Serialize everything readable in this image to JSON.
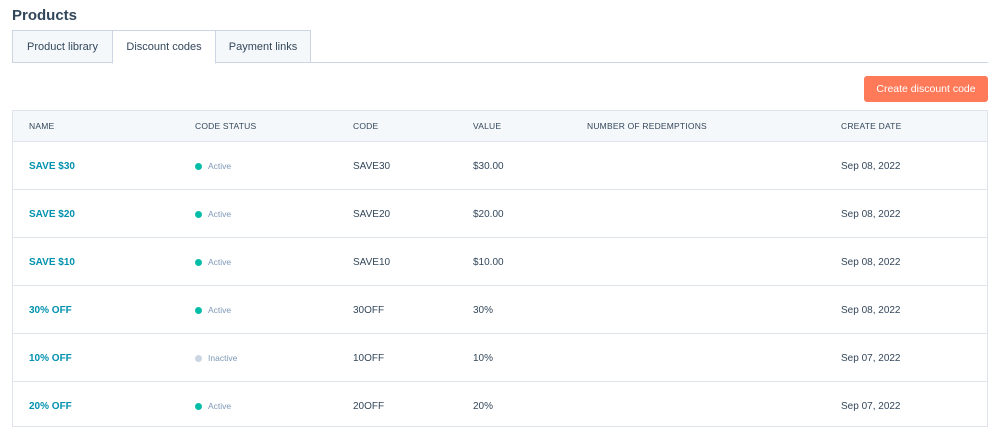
{
  "page": {
    "title": "Products"
  },
  "tabs": [
    {
      "label": "Product library"
    },
    {
      "label": "Discount codes"
    },
    {
      "label": "Payment links"
    }
  ],
  "actions": {
    "create_label": "Create discount code"
  },
  "colors": {
    "accent": "#ff7a59",
    "link": "#0091ae",
    "active": "#00bda5",
    "inactive": "#cbd6e2"
  },
  "table": {
    "columns": [
      "NAME",
      "CODE STATUS",
      "CODE",
      "VALUE",
      "NUMBER OF REDEMPTIONS",
      "CREATE DATE"
    ],
    "rows": [
      {
        "name": "SAVE $30",
        "status": "Active",
        "code": "SAVE30",
        "value": "$30.00",
        "redemptions": "",
        "date": "Sep 08, 2022"
      },
      {
        "name": "SAVE $20",
        "status": "Active",
        "code": "SAVE20",
        "value": "$20.00",
        "redemptions": "",
        "date": "Sep 08, 2022"
      },
      {
        "name": "SAVE $10",
        "status": "Active",
        "code": "SAVE10",
        "value": "$10.00",
        "redemptions": "",
        "date": "Sep 08, 2022"
      },
      {
        "name": "30% OFF",
        "status": "Active",
        "code": "30OFF",
        "value": "30%",
        "redemptions": "",
        "date": "Sep 08, 2022"
      },
      {
        "name": "10% OFF",
        "status": "Inactive",
        "code": "10OFF",
        "value": "10%",
        "redemptions": "",
        "date": "Sep 07, 2022"
      },
      {
        "name": "20% OFF",
        "status": "Active",
        "code": "20OFF",
        "value": "20%",
        "redemptions": "",
        "date": "Sep 07, 2022"
      }
    ]
  }
}
